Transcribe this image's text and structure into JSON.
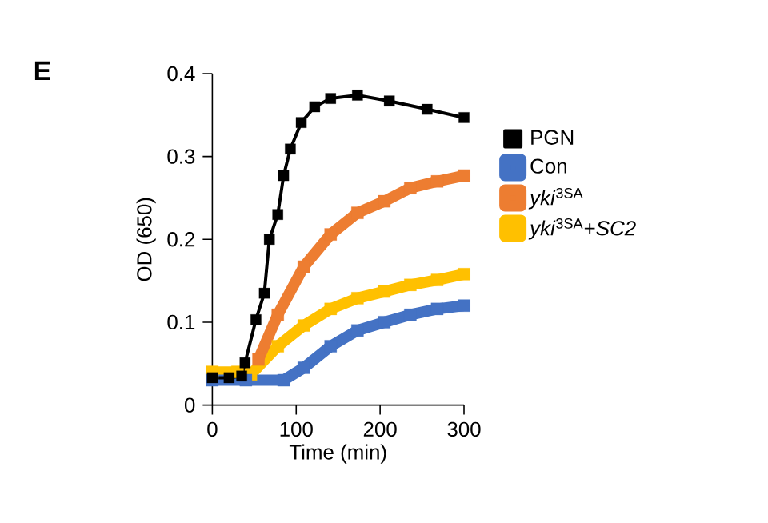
{
  "chart_data": {
    "type": "line",
    "title": "E",
    "xlabel": "Time (min)",
    "ylabel": "OD (650)",
    "xlim": [
      0,
      300
    ],
    "xticks": [
      0,
      100,
      200,
      300
    ],
    "ylim": [
      0,
      0.4
    ],
    "yticks": [
      0,
      0.1,
      0.2,
      0.3,
      0.4
    ],
    "marker": "square",
    "line_style": "solid",
    "legend": "right",
    "grid": false,
    "series": [
      {
        "name": "PGN",
        "color": "#000000",
        "x": [
          0,
          20,
          35,
          39,
          52,
          62,
          68,
          78,
          85,
          93,
          106,
          122,
          141,
          173,
          211,
          256,
          300
        ],
        "values": [
          0.033,
          0.033,
          0.035,
          0.051,
          0.103,
          0.135,
          0.2,
          0.23,
          0.277,
          0.309,
          0.341,
          0.36,
          0.37,
          0.374,
          0.367,
          0.357,
          0.347
        ]
      },
      {
        "name": "Con",
        "color": "#4472c4",
        "x": [
          0,
          40,
          85,
          109,
          141,
          173,
          205,
          236,
          268,
          300
        ],
        "values": [
          0.03,
          0.03,
          0.03,
          0.045,
          0.071,
          0.09,
          0.1,
          0.109,
          0.116,
          0.12
        ]
      },
      {
        "name": "*yki*$^{3SA}$",
        "color": "#ed7d31",
        "x": [
          55,
          78,
          109,
          141,
          173,
          205,
          236,
          268,
          300
        ],
        "values": [
          0.055,
          0.109,
          0.167,
          0.206,
          0.232,
          0.246,
          0.262,
          0.27,
          0.277
        ]
      },
      {
        "name": "*yki*$^{3SA}$+*SC2*",
        "color": "#ffc000",
        "x": [
          0,
          30,
          46,
          78,
          109,
          141,
          173,
          205,
          236,
          268,
          300
        ],
        "values": [
          0.04,
          0.04,
          0.037,
          0.071,
          0.096,
          0.116,
          0.129,
          0.137,
          0.145,
          0.151,
          0.158
        ]
      }
    ]
  }
}
